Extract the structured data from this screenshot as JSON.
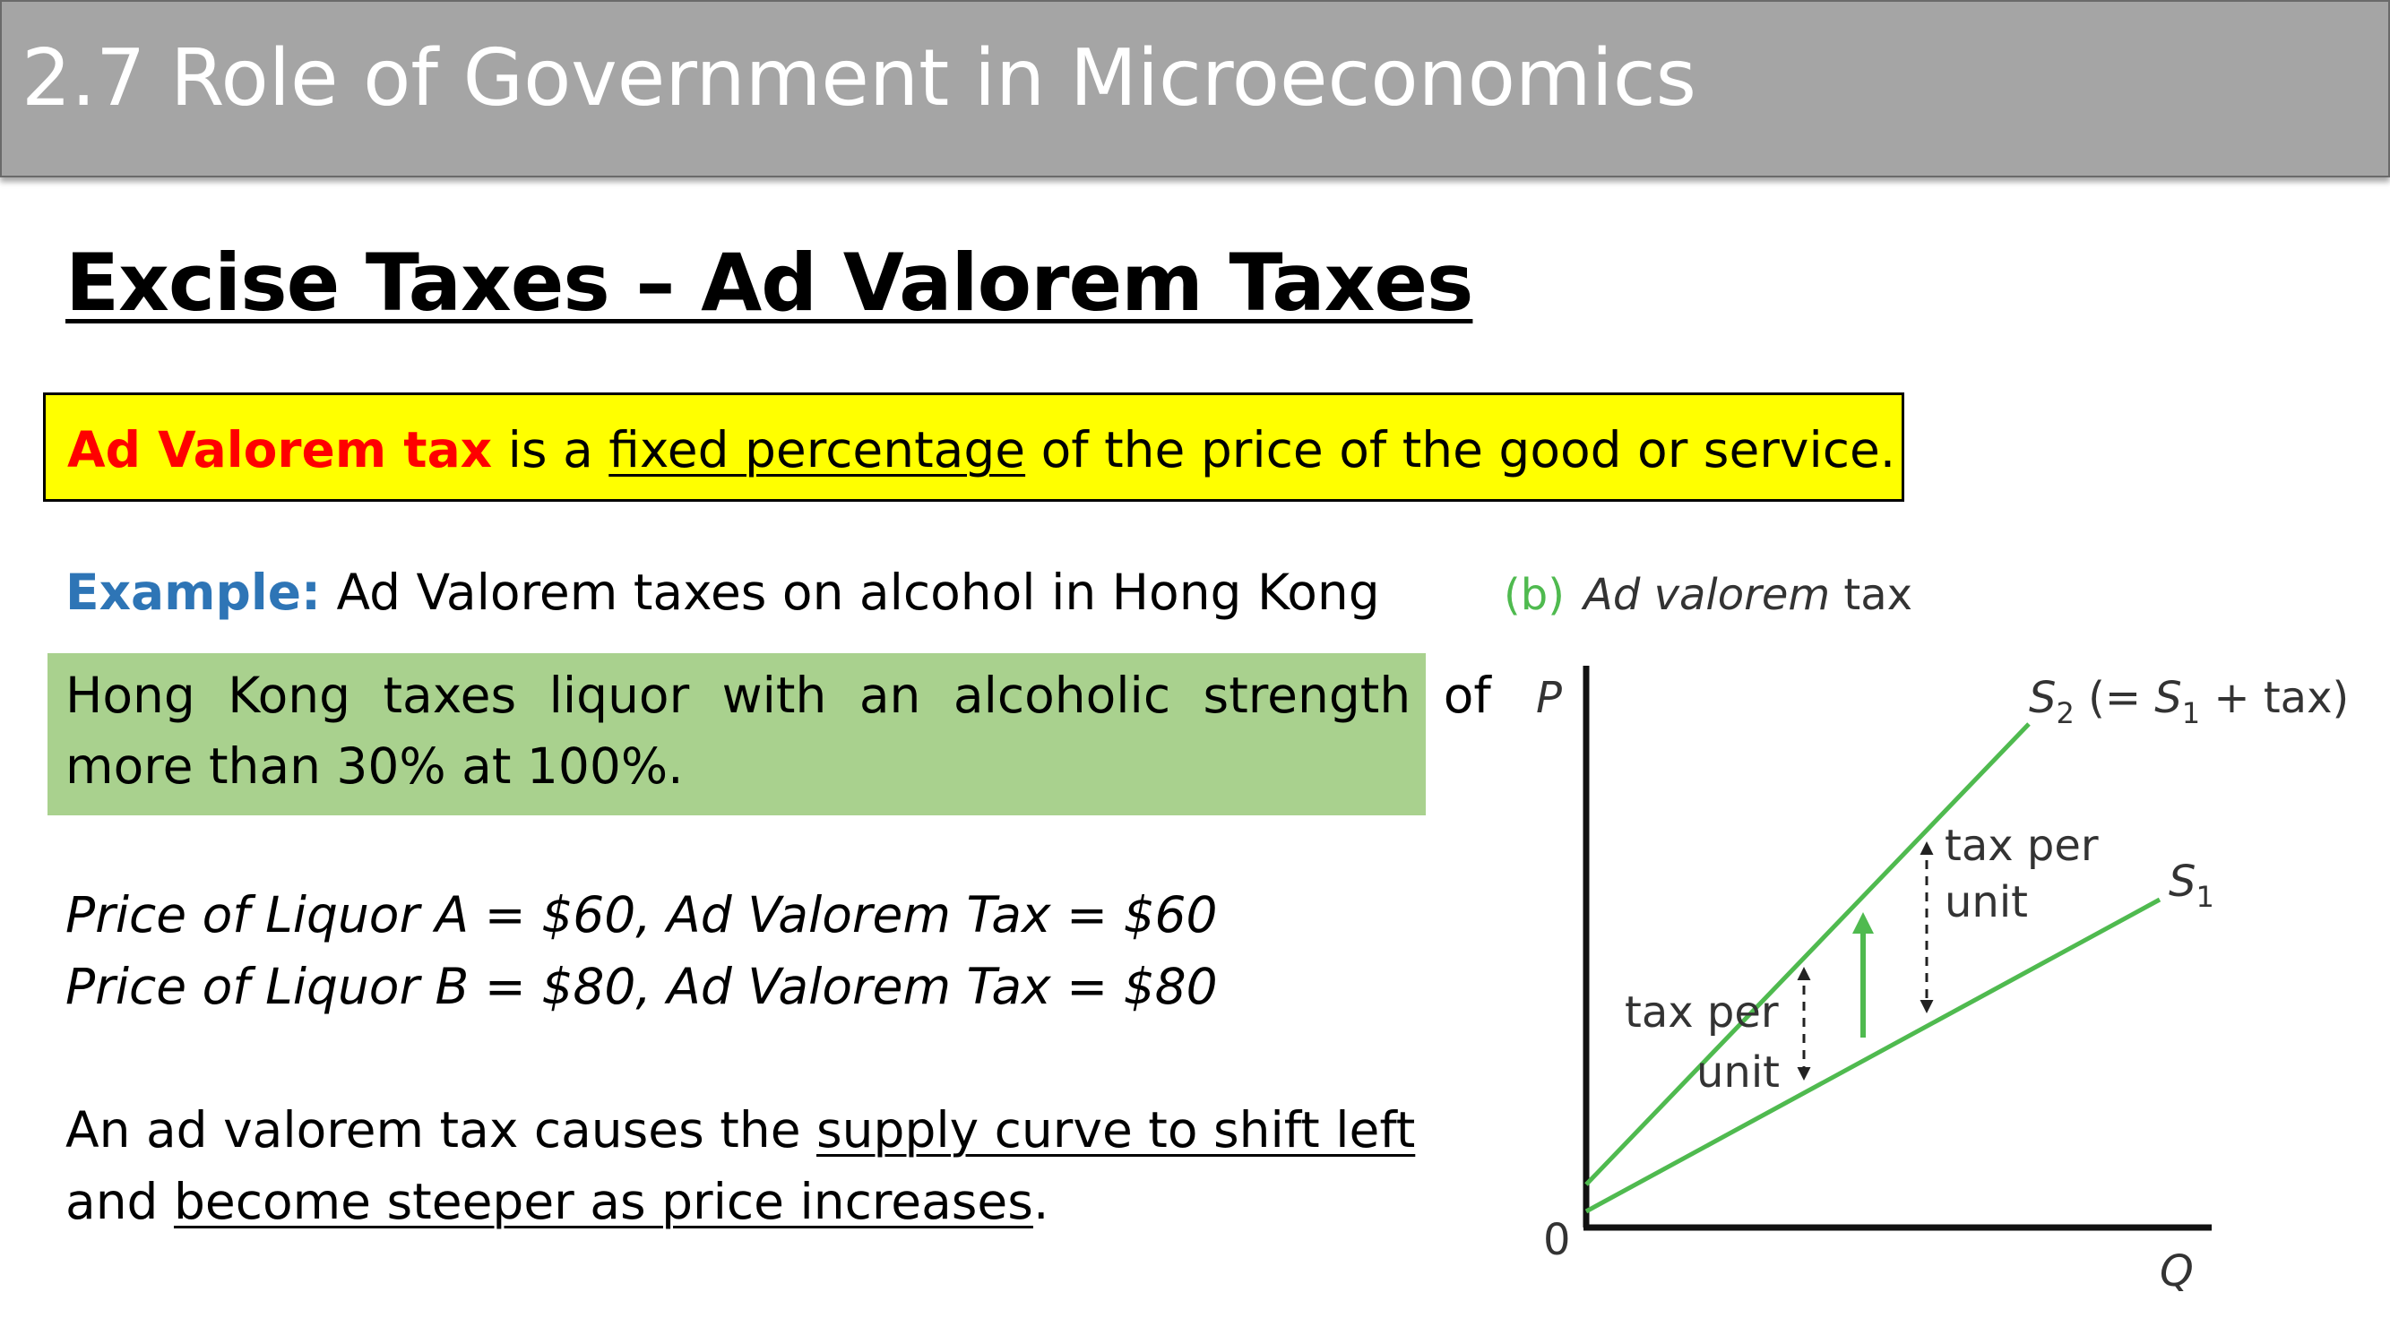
{
  "header": {
    "title": "2.7 Role of Government in Microeconomics"
  },
  "section_title": "Excise Taxes – Ad Valorem Taxes",
  "definition": {
    "term": "Ad Valorem tax",
    "middle": " is a ",
    "underlined": "fixed percentage",
    "end": " of the price of the good or service."
  },
  "example": {
    "label": "Example:",
    "text": " Ad Valorem taxes on alcohol in Hong Kong"
  },
  "hk_box": {
    "line1": "Hong Kong taxes liquor with an alcoholic strength of",
    "line2": "more than 30% at 100%."
  },
  "prices": {
    "line1": "Price of Liquor A = $60, Ad Valorem Tax = $60",
    "line2": "Price of Liquor B = $80, Ad Valorem Tax = $80"
  },
  "conclusion": {
    "l1_pre": "An ad valorem tax causes the ",
    "l1_u": "supply curve to shift left",
    "l2_pre": "and ",
    "l2_u": "become steeper as price increases",
    "l2_post": "."
  },
  "diagram": {
    "panel_label": "(b)",
    "panel_title_italic": "Ad valorem",
    "panel_title_rest": " tax",
    "y_axis_label": "P",
    "x_axis_label": "Q",
    "origin_label": "0",
    "s2_main": "S",
    "s2_sub": "2",
    "s2_paren_open": " (= ",
    "s2_s1_main": "S",
    "s2_s1_sub": "1",
    "s2_paren_close": " + tax)",
    "s1_main": "S",
    "s1_sub": "1",
    "tax_label_right_1": "tax per",
    "tax_label_right_2": "unit",
    "tax_label_left_1": "tax per",
    "tax_label_left_2": "unit",
    "curve_color": "#4fba4f",
    "arrow_color": "#4fba4f"
  }
}
